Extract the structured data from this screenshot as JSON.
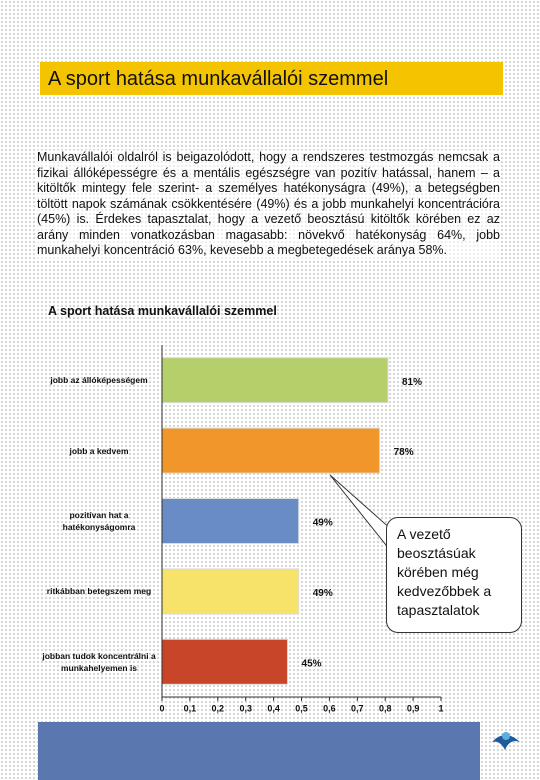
{
  "header": {
    "title": "A sport hatása munkavállalói szemmel"
  },
  "body": {
    "paragraph": "Munkavállalói oldalról is beigazolódott, hogy a rendszeres testmozgás nemcsak a fizikai állóképességre és a mentális egészségre van pozitív hatással, hanem – a kitöltők mintegy fele szerint- a személyes hatékonyságra (49%), a betegségben töltött napok számának csökkentésére (49%) és a jobb munkahelyi koncentrációra (45%) is. Érdekes tapasztalat, hogy a vezető beosztású kitöltők körében ez az arány minden vonatkozásban magasabb: növekvő hatékonyság 64%, jobb munkahelyi koncentráció 63%, kevesebb a megbetegedések aránya 58%."
  },
  "chart_data": {
    "type": "hbar",
    "title": "A sport hatása munkavállalói szemmel",
    "categories": [
      "jobb az állóképességem",
      "jobb a kedvem",
      "pozitívan hat a hatékonyságomra",
      "ritkábban betegszem meg",
      "jobban tudok koncentrálni a munkahelyemen is"
    ],
    "values": [
      0.81,
      0.78,
      0.49,
      0.49,
      0.45
    ],
    "value_labels": [
      "81%",
      "78%",
      "49%",
      "49%",
      "45%"
    ],
    "colors": [
      "#b5cf6b",
      "#f0962a",
      "#6a8cc6",
      "#f7e36a",
      "#c8452a"
    ],
    "xlim": [
      0,
      1
    ],
    "xticks": [
      0,
      {
        "value": 0.1,
        "label": "0,1"
      },
      {
        "value": 0.2,
        "label": "0,2"
      },
      {
        "value": 0.3,
        "label": "0,3"
      },
      {
        "value": 0.4,
        "label": "0,4"
      },
      {
        "value": 0.5,
        "label": "0,5"
      },
      {
        "value": 0.6,
        "label": "0,6"
      },
      {
        "value": 0.7,
        "label": "0,7"
      },
      {
        "value": 0.8,
        "label": "0,8"
      },
      {
        "value": 0.9,
        "label": "0,9"
      },
      1
    ],
    "annotation": "A vezető beosztásúak körében még kedvezőbbek a tapasztalatok"
  }
}
